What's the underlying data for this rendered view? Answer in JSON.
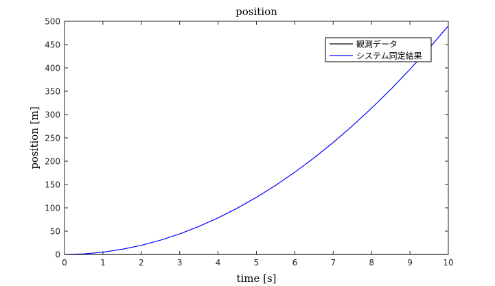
{
  "chart_data": {
    "type": "line",
    "title": "position",
    "xlabel": "time [s]",
    "ylabel": "position [m]",
    "xlim": [
      0,
      10
    ],
    "ylim": [
      0,
      500
    ],
    "xticks": [
      0,
      1,
      2,
      3,
      4,
      5,
      6,
      7,
      8,
      9,
      10
    ],
    "yticks": [
      0,
      50,
      100,
      150,
      200,
      250,
      300,
      350,
      400,
      450,
      500
    ],
    "grid": false,
    "legend_position": "top-right",
    "series": [
      {
        "name": "観測データ",
        "color": "#000000",
        "x": [
          0,
          0.5,
          1,
          1.5,
          2,
          2.5,
          3,
          3.5,
          4,
          4.5,
          5,
          5.5,
          6,
          6.5,
          7,
          7.5,
          8,
          8.5,
          9,
          9.5,
          10
        ],
        "y": [
          0,
          0,
          0,
          0,
          0,
          0,
          0,
          0,
          0,
          0,
          0,
          0,
          0,
          0,
          0,
          0,
          0,
          0,
          0,
          0,
          0
        ]
      },
      {
        "name": "システム同定結果",
        "color": "#0000ff",
        "x": [
          0,
          0.5,
          1,
          1.5,
          2,
          2.5,
          3,
          3.5,
          4,
          4.5,
          5,
          5.5,
          6,
          6.5,
          7,
          7.5,
          8,
          8.5,
          9,
          9.5,
          10
        ],
        "y": [
          0,
          1.2,
          4.9,
          11,
          19.6,
          30.6,
          44.1,
          60,
          78.4,
          99.2,
          122.5,
          148.2,
          176.4,
          207,
          240.1,
          275.6,
          313.6,
          354,
          396.9,
          442.2,
          490
        ]
      }
    ]
  }
}
